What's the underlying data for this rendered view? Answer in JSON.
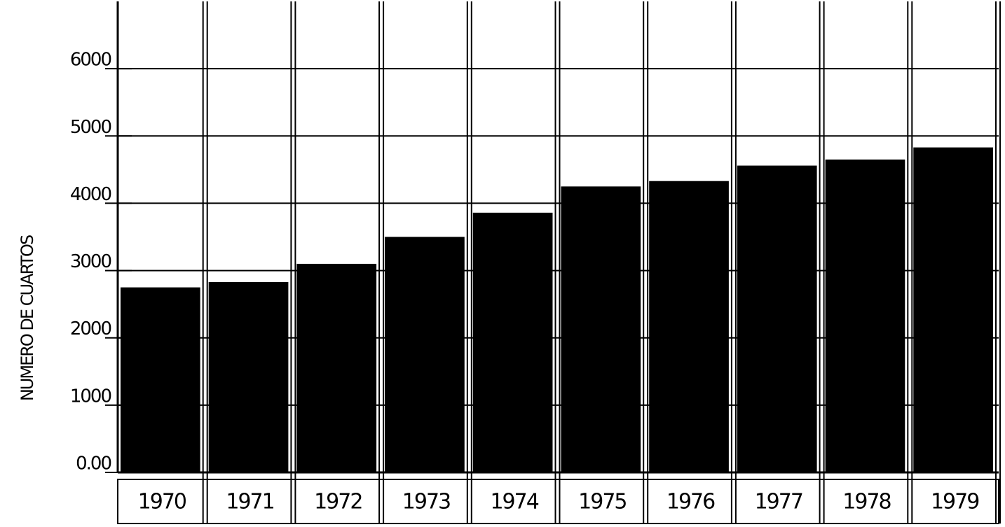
{
  "chart_data": {
    "type": "bar",
    "y_label": "NUMERO DE CUARTOS",
    "categories": [
      "1970",
      "1971",
      "1972",
      "1973",
      "1974",
      "1975",
      "1976",
      "1977",
      "1978",
      "1979"
    ],
    "values": [
      2750,
      2830,
      3100,
      3500,
      3860,
      4250,
      4330,
      4560,
      4650,
      4830
    ],
    "color": "#000000",
    "ylim": [
      0,
      7000
    ],
    "yticks": [
      {
        "value": 0,
        "label": "0.00"
      },
      1000,
      2000,
      3000,
      4000,
      5000,
      6000
    ],
    "grid": true
  }
}
